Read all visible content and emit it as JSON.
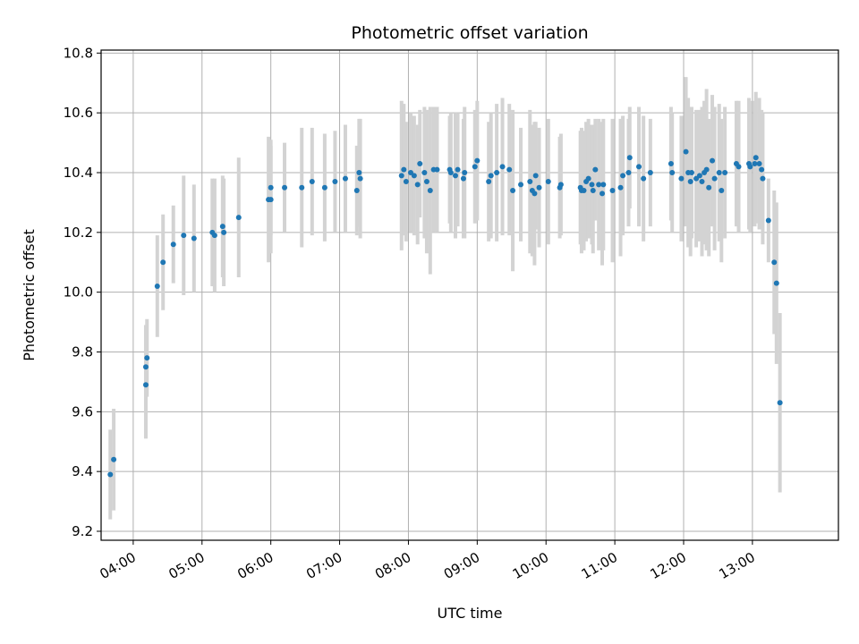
{
  "chart_data": {
    "type": "scatter",
    "title": "Photometric offset variation",
    "xlabel": "UTC time",
    "ylabel": "Photometric offset",
    "grid": true,
    "error_bars": true,
    "colors": {
      "points": "#1f77b4",
      "error_bars": "#d3d3d3",
      "grid": "#b0b0b0"
    },
    "xlim": [
      "03:32",
      "14:15"
    ],
    "ylim": [
      9.17,
      10.81
    ],
    "x_ticks": [
      "04:00",
      "05:00",
      "06:00",
      "07:00",
      "08:00",
      "09:00",
      "10:00",
      "11:00",
      "12:00",
      "13:00"
    ],
    "y_ticks": [
      "9.2",
      "9.4",
      "9.6",
      "9.8",
      "10.0",
      "10.2",
      "10.4",
      "10.6",
      "10.8"
    ],
    "series": [
      {
        "marker": "dot",
        "points": [
          {
            "x": "03:40",
            "y": 9.39,
            "err": 0.15
          },
          {
            "x": "03:43",
            "y": 9.44,
            "err": 0.17
          },
          {
            "x": "04:11",
            "y": 9.69,
            "err": 0.18
          },
          {
            "x": "04:11",
            "y": 9.75,
            "err": 0.14
          },
          {
            "x": "04:12",
            "y": 9.78,
            "err": 0.13
          },
          {
            "x": "04:21",
            "y": 10.02,
            "err": 0.17
          },
          {
            "x": "04:26",
            "y": 10.1,
            "err": 0.16
          },
          {
            "x": "04:35",
            "y": 10.16,
            "err": 0.13
          },
          {
            "x": "04:44",
            "y": 10.19,
            "err": 0.2
          },
          {
            "x": "04:53",
            "y": 10.18,
            "err": 0.18
          },
          {
            "x": "05:09",
            "y": 10.2,
            "err": 0.18
          },
          {
            "x": "05:11",
            "y": 10.19,
            "err": 0.19
          },
          {
            "x": "05:18",
            "y": 10.22,
            "err": 0.17
          },
          {
            "x": "05:19",
            "y": 10.2,
            "err": 0.18
          },
          {
            "x": "05:32",
            "y": 10.25,
            "err": 0.2
          },
          {
            "x": "05:58",
            "y": 10.31,
            "err": 0.21
          },
          {
            "x": "06:00",
            "y": 10.31,
            "err": 0.18
          },
          {
            "x": "06:00",
            "y": 10.35,
            "err": 0.16
          },
          {
            "x": "06:12",
            "y": 10.35,
            "err": 0.15
          },
          {
            "x": "06:27",
            "y": 10.35,
            "err": 0.2
          },
          {
            "x": "06:36",
            "y": 10.37,
            "err": 0.18
          },
          {
            "x": "06:47",
            "y": 10.35,
            "err": 0.18
          },
          {
            "x": "06:56",
            "y": 10.37,
            "err": 0.17
          },
          {
            "x": "07:05",
            "y": 10.38,
            "err": 0.18
          },
          {
            "x": "07:15",
            "y": 10.34,
            "err": 0.15
          },
          {
            "x": "07:17",
            "y": 10.4,
            "err": 0.18
          },
          {
            "x": "07:18",
            "y": 10.38,
            "err": 0.2
          },
          {
            "x": "07:54",
            "y": 10.39,
            "err": 0.25
          },
          {
            "x": "07:56",
            "y": 10.41,
            "err": 0.22
          },
          {
            "x": "07:58",
            "y": 10.37,
            "err": 0.2
          },
          {
            "x": "08:02",
            "y": 10.4,
            "err": 0.2
          },
          {
            "x": "08:05",
            "y": 10.39,
            "err": 0.2
          },
          {
            "x": "08:08",
            "y": 10.36,
            "err": 0.2
          },
          {
            "x": "08:10",
            "y": 10.43,
            "err": 0.18
          },
          {
            "x": "08:14",
            "y": 10.4,
            "err": 0.22
          },
          {
            "x": "08:16",
            "y": 10.37,
            "err": 0.24
          },
          {
            "x": "08:19",
            "y": 10.34,
            "err": 0.28
          },
          {
            "x": "08:22",
            "y": 10.41,
            "err": 0.21
          },
          {
            "x": "08:25",
            "y": 10.41,
            "err": 0.21
          },
          {
            "x": "08:36",
            "y": 10.41,
            "err": 0.18
          },
          {
            "x": "08:37",
            "y": 10.4,
            "err": 0.2
          },
          {
            "x": "08:41",
            "y": 10.39,
            "err": 0.21
          },
          {
            "x": "08:43",
            "y": 10.41,
            "err": 0.19
          },
          {
            "x": "08:48",
            "y": 10.38,
            "err": 0.2
          },
          {
            "x": "08:49",
            "y": 10.4,
            "err": 0.22
          },
          {
            "x": "08:58",
            "y": 10.42,
            "err": 0.19
          },
          {
            "x": "09:00",
            "y": 10.44,
            "err": 0.2
          },
          {
            "x": "09:10",
            "y": 10.37,
            "err": 0.2
          },
          {
            "x": "09:12",
            "y": 10.39,
            "err": 0.21
          },
          {
            "x": "09:17",
            "y": 10.4,
            "err": 0.23
          },
          {
            "x": "09:22",
            "y": 10.42,
            "err": 0.23
          },
          {
            "x": "09:28",
            "y": 10.41,
            "err": 0.22
          },
          {
            "x": "09:31",
            "y": 10.34,
            "err": 0.27
          },
          {
            "x": "09:38",
            "y": 10.36,
            "err": 0.19
          },
          {
            "x": "09:46",
            "y": 10.37,
            "err": 0.24
          },
          {
            "x": "09:48",
            "y": 10.34,
            "err": 0.22
          },
          {
            "x": "09:50",
            "y": 10.33,
            "err": 0.24
          },
          {
            "x": "09:51",
            "y": 10.39,
            "err": 0.18
          },
          {
            "x": "09:54",
            "y": 10.35,
            "err": 0.2
          },
          {
            "x": "10:02",
            "y": 10.37,
            "err": 0.21
          },
          {
            "x": "10:12",
            "y": 10.35,
            "err": 0.17
          },
          {
            "x": "10:13",
            "y": 10.36,
            "err": 0.17
          },
          {
            "x": "10:30",
            "y": 10.35,
            "err": 0.19
          },
          {
            "x": "10:31",
            "y": 10.34,
            "err": 0.21
          },
          {
            "x": "10:33",
            "y": 10.34,
            "err": 0.2
          },
          {
            "x": "10:35",
            "y": 10.37,
            "err": 0.2
          },
          {
            "x": "10:37",
            "y": 10.38,
            "err": 0.2
          },
          {
            "x": "10:40",
            "y": 10.36,
            "err": 0.2
          },
          {
            "x": "10:41",
            "y": 10.34,
            "err": 0.21
          },
          {
            "x": "10:43",
            "y": 10.41,
            "err": 0.17
          },
          {
            "x": "10:46",
            "y": 10.36,
            "err": 0.22
          },
          {
            "x": "10:49",
            "y": 10.33,
            "err": 0.24
          },
          {
            "x": "10:50",
            "y": 10.36,
            "err": 0.22
          },
          {
            "x": "10:58",
            "y": 10.34,
            "err": 0.24
          },
          {
            "x": "11:05",
            "y": 10.35,
            "err": 0.23
          },
          {
            "x": "11:07",
            "y": 10.39,
            "err": 0.2
          },
          {
            "x": "11:12",
            "y": 10.4,
            "err": 0.18
          },
          {
            "x": "11:13",
            "y": 10.45,
            "err": 0.17
          },
          {
            "x": "11:21",
            "y": 10.42,
            "err": 0.2
          },
          {
            "x": "11:25",
            "y": 10.38,
            "err": 0.21
          },
          {
            "x": "11:31",
            "y": 10.4,
            "err": 0.18
          },
          {
            "x": "11:49",
            "y": 10.43,
            "err": 0.19
          },
          {
            "x": "11:50",
            "y": 10.4,
            "err": 0.2
          },
          {
            "x": "11:58",
            "y": 10.38,
            "err": 0.21
          },
          {
            "x": "12:02",
            "y": 10.47,
            "err": 0.25
          },
          {
            "x": "12:04",
            "y": 10.4,
            "err": 0.25
          },
          {
            "x": "12:06",
            "y": 10.37,
            "err": 0.25
          },
          {
            "x": "12:07",
            "y": 10.4,
            "err": 0.22
          },
          {
            "x": "12:11",
            "y": 10.38,
            "err": 0.23
          },
          {
            "x": "12:14",
            "y": 10.39,
            "err": 0.22
          },
          {
            "x": "12:16",
            "y": 10.37,
            "err": 0.25
          },
          {
            "x": "12:18",
            "y": 10.4,
            "err": 0.24
          },
          {
            "x": "12:20",
            "y": 10.41,
            "err": 0.27
          },
          {
            "x": "12:22",
            "y": 10.35,
            "err": 0.23
          },
          {
            "x": "12:25",
            "y": 10.44,
            "err": 0.22
          },
          {
            "x": "12:27",
            "y": 10.38,
            "err": 0.24
          },
          {
            "x": "12:31",
            "y": 10.4,
            "err": 0.23
          },
          {
            "x": "12:33",
            "y": 10.34,
            "err": 0.24
          },
          {
            "x": "12:36",
            "y": 10.4,
            "err": 0.22
          },
          {
            "x": "12:46",
            "y": 10.43,
            "err": 0.21
          },
          {
            "x": "12:48",
            "y": 10.42,
            "err": 0.22
          },
          {
            "x": "12:57",
            "y": 10.43,
            "err": 0.22
          },
          {
            "x": "12:58",
            "y": 10.42,
            "err": 0.22
          },
          {
            "x": "13:02",
            "y": 10.43,
            "err": 0.21
          },
          {
            "x": "13:03",
            "y": 10.45,
            "err": 0.22
          },
          {
            "x": "13:06",
            "y": 10.43,
            "err": 0.22
          },
          {
            "x": "13:08",
            "y": 10.41,
            "err": 0.2
          },
          {
            "x": "13:09",
            "y": 10.38,
            "err": 0.22
          },
          {
            "x": "13:14",
            "y": 10.24,
            "err": 0.14
          },
          {
            "x": "13:19",
            "y": 10.1,
            "err": 0.24
          },
          {
            "x": "13:21",
            "y": 10.03,
            "err": 0.27
          },
          {
            "x": "13:24",
            "y": 9.63,
            "err": 0.3
          }
        ]
      }
    ]
  }
}
